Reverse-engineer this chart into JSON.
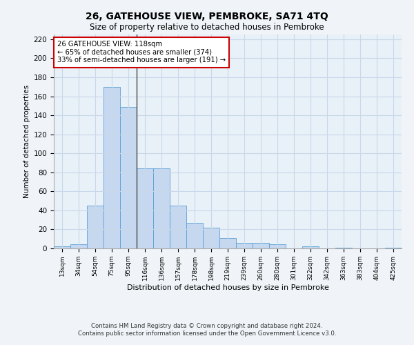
{
  "title": "26, GATEHOUSE VIEW, PEMBROKE, SA71 4TQ",
  "subtitle": "Size of property relative to detached houses in Pembroke",
  "xlabel": "Distribution of detached houses by size in Pembroke",
  "ylabel": "Number of detached properties",
  "categories": [
    "13sqm",
    "34sqm",
    "54sqm",
    "75sqm",
    "95sqm",
    "116sqm",
    "136sqm",
    "157sqm",
    "178sqm",
    "198sqm",
    "219sqm",
    "239sqm",
    "260sqm",
    "280sqm",
    "301sqm",
    "322sqm",
    "342sqm",
    "363sqm",
    "383sqm",
    "404sqm",
    "425sqm"
  ],
  "values": [
    2,
    4,
    45,
    170,
    149,
    84,
    84,
    45,
    27,
    22,
    11,
    6,
    6,
    4,
    0,
    2,
    0,
    1,
    0,
    0,
    1
  ],
  "bar_color": "#c5d8f0",
  "bar_edge_color": "#5a9fd4",
  "property_line_index": 5,
  "annotation_title": "26 GATEHOUSE VIEW: 118sqm",
  "annotation_line1": "← 65% of detached houses are smaller (374)",
  "annotation_line2": "33% of semi-detached houses are larger (191) →",
  "annotation_box_color": "#ffffff",
  "annotation_box_edge": "#cc0000",
  "vline_color": "#444444",
  "ylim": [
    0,
    225
  ],
  "yticks": [
    0,
    20,
    40,
    60,
    80,
    100,
    120,
    140,
    160,
    180,
    200,
    220
  ],
  "grid_color": "#c8d8e8",
  "bg_color": "#e8f0f8",
  "fig_bg_color": "#f0f4f8",
  "footer_line1": "Contains HM Land Registry data © Crown copyright and database right 2024.",
  "footer_line2": "Contains public sector information licensed under the Open Government Licence v3.0."
}
